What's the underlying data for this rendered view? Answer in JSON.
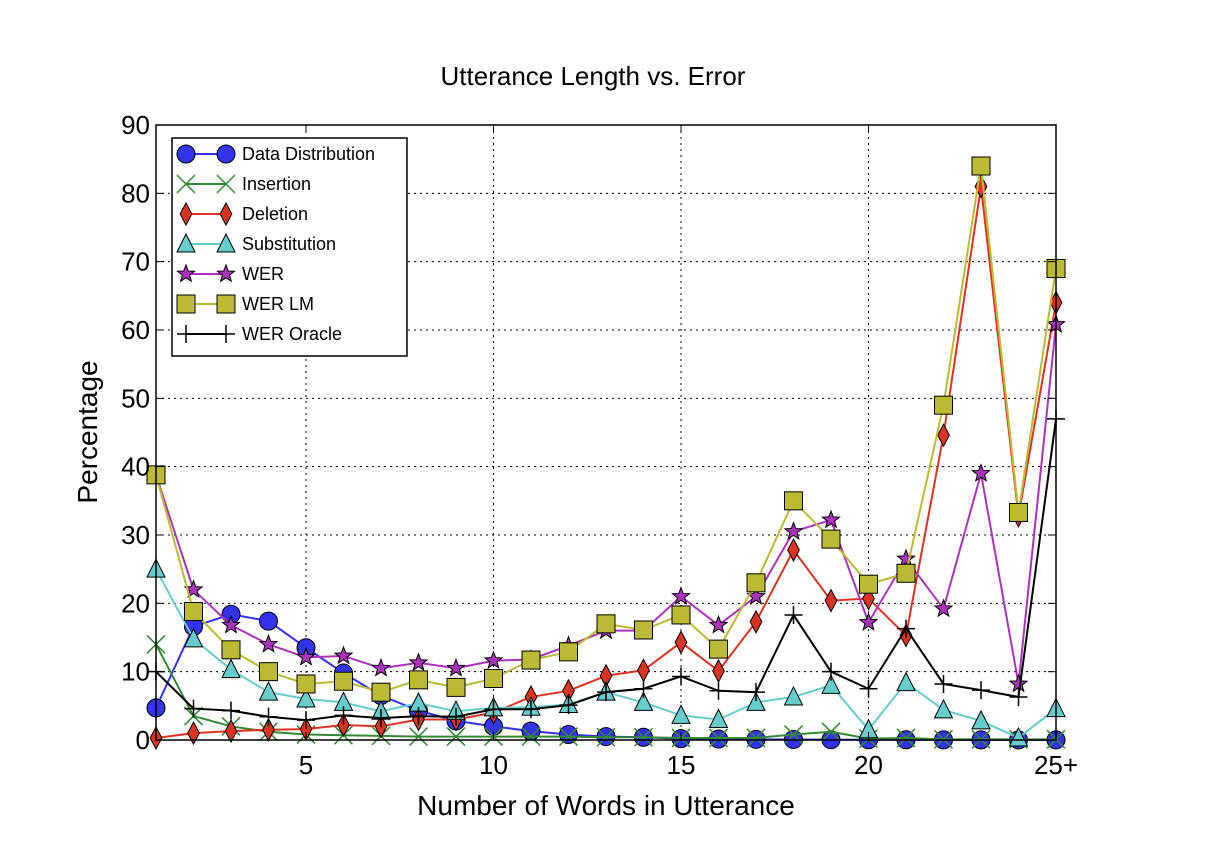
{
  "chart_data": {
    "type": "line",
    "title": "Utterance Length vs. Error",
    "xlabel": "Number of Words in Utterance",
    "ylabel": "Percentage",
    "x": [
      1,
      2,
      3,
      4,
      5,
      6,
      7,
      8,
      9,
      10,
      11,
      12,
      13,
      14,
      15,
      16,
      17,
      18,
      19,
      20,
      21,
      22,
      23,
      24,
      25
    ],
    "xlim": [
      1,
      25
    ],
    "ylim": [
      0,
      90
    ],
    "xticks": [
      5,
      10,
      15,
      20,
      25
    ],
    "xtick_labels": [
      "5",
      "10",
      "15",
      "20",
      "25+"
    ],
    "yticks": [
      0,
      10,
      20,
      30,
      40,
      50,
      60,
      70,
      80,
      90
    ],
    "grid": true,
    "legend_position": "top-left",
    "series": [
      {
        "name": "Data Distribution",
        "color": "#3333ee",
        "marker": "circle",
        "values": [
          4.7,
          16.6,
          18.4,
          17.4,
          13.5,
          9.8,
          6.5,
          4.3,
          2.8,
          2.0,
          1.3,
          0.8,
          0.5,
          0.4,
          0.2,
          0.15,
          0.1,
          0.08,
          0.05,
          0.04,
          0.03,
          0.02,
          0.02,
          0.01,
          0.01
        ]
      },
      {
        "name": "Insertion",
        "color": "#338833",
        "marker": "x",
        "values": [
          14.0,
          3.5,
          2.0,
          1.2,
          0.8,
          0.7,
          0.6,
          0.5,
          0.5,
          0.5,
          0.5,
          0.5,
          0.4,
          0.4,
          0.3,
          0.3,
          0.3,
          0.8,
          1.2,
          0.2,
          0.3,
          0.1,
          0.1,
          0.1,
          0.1
        ]
      },
      {
        "name": "Deletion",
        "color": "#dd3322",
        "marker": "diamond",
        "values": [
          0.3,
          1.0,
          1.3,
          1.5,
          1.6,
          2.2,
          2.0,
          3.0,
          3.0,
          4.0,
          6.3,
          7.2,
          9.4,
          10.2,
          14.3,
          10.1,
          17.3,
          27.8,
          20.4,
          20.7,
          15.3,
          44.6,
          81.0,
          32.8,
          64.0
        ]
      },
      {
        "name": "Substitution",
        "color": "#66cccc",
        "marker": "triangle",
        "values": [
          25.0,
          14.8,
          10.3,
          7.0,
          6.0,
          5.5,
          4.2,
          5.4,
          4.2,
          4.7,
          4.8,
          5.2,
          7.0,
          5.5,
          3.6,
          3.0,
          5.5,
          6.3,
          8.0,
          1.5,
          8.4,
          4.4,
          2.8,
          0.3,
          4.6
        ]
      },
      {
        "name": "WER",
        "color": "#aa33bb",
        "marker": "star",
        "values": [
          38.8,
          22.0,
          16.8,
          14.0,
          12.1,
          12.3,
          10.5,
          11.3,
          10.5,
          11.6,
          11.8,
          13.8,
          16.0,
          16.0,
          21.0,
          16.8,
          21.0,
          30.5,
          32.2,
          17.2,
          26.5,
          19.2,
          39.0,
          8.2,
          60.8
        ]
      },
      {
        "name": "WER LM",
        "color": "#bbbb33",
        "marker": "square",
        "values": [
          38.8,
          18.8,
          13.2,
          10.0,
          8.2,
          8.6,
          7.0,
          8.8,
          7.7,
          9.0,
          11.7,
          12.9,
          17.0,
          16.1,
          18.3,
          13.3,
          23.0,
          35.0,
          29.4,
          22.8,
          24.4,
          49.0,
          84.0,
          33.3,
          69.0
        ]
      },
      {
        "name": "WER Oracle",
        "color": "#000000",
        "marker": "plus",
        "values": [
          10.0,
          4.6,
          4.3,
          3.4,
          2.9,
          3.6,
          3.2,
          3.5,
          3.4,
          4.5,
          4.5,
          5.1,
          7.0,
          7.5,
          9.3,
          7.2,
          7.0,
          18.3,
          10.0,
          7.5,
          16.3,
          8.2,
          7.3,
          6.3,
          47.0
        ]
      }
    ]
  }
}
